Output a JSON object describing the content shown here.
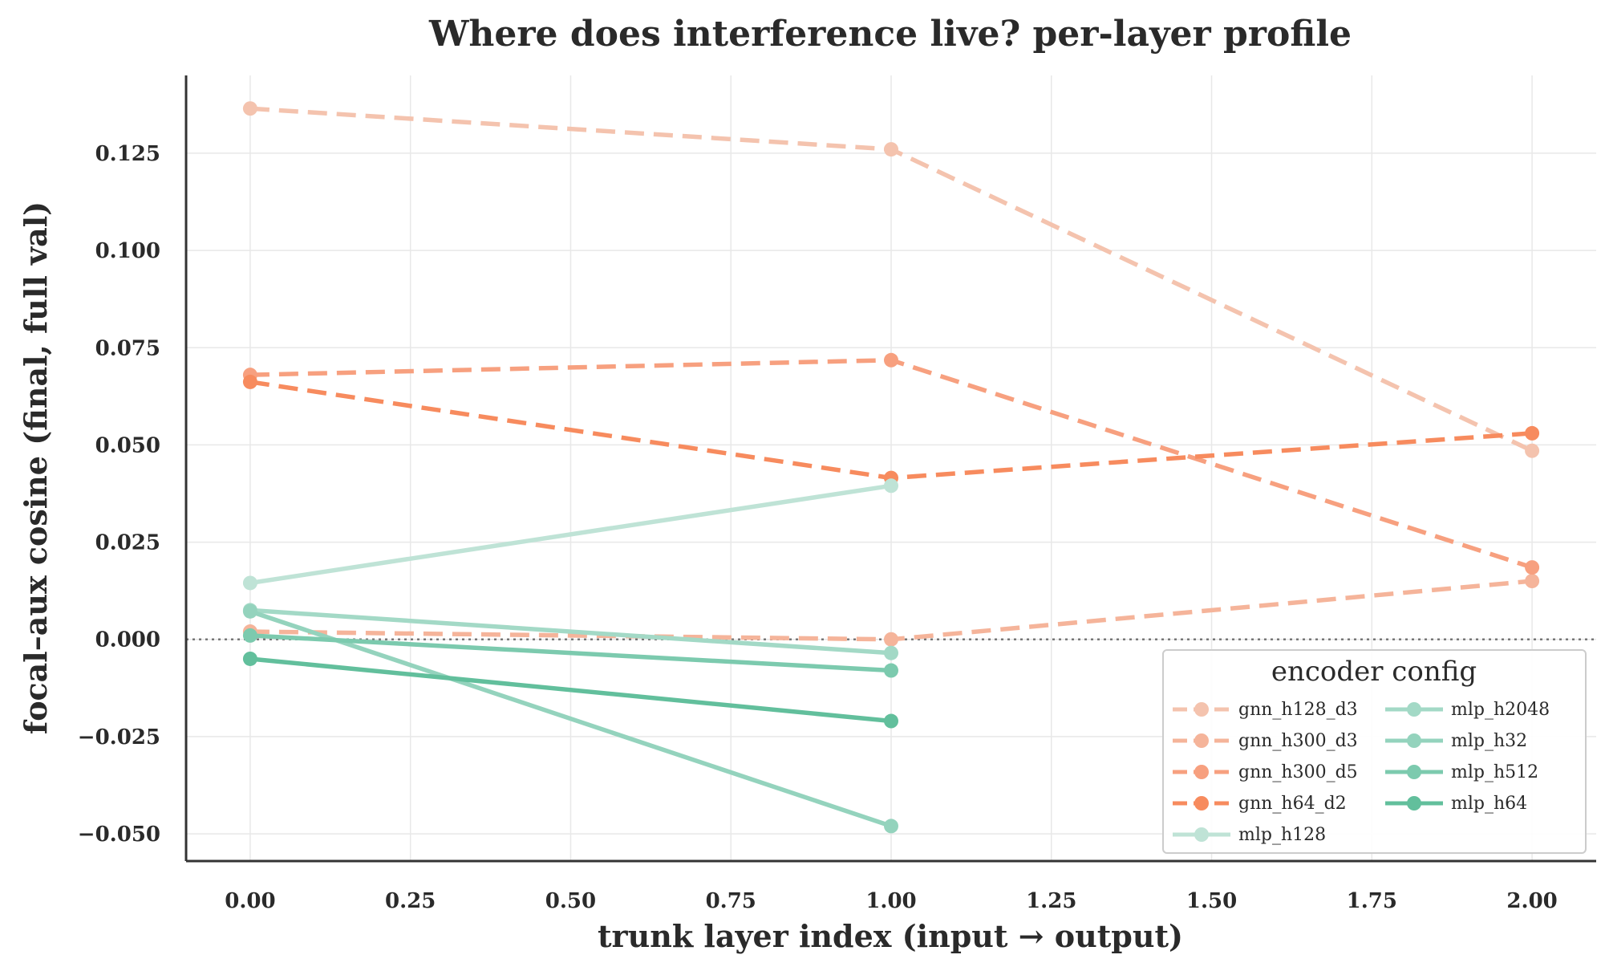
{
  "chart_data": {
    "type": "line",
    "title": "Where does interference live? per-layer profile",
    "xlabel": "trunk layer index  (input → output)",
    "ylabel": "focal–aux cosine  (final, full val)",
    "xlim": [
      -0.1,
      2.1
    ],
    "ylim": [
      -0.057,
      0.145
    ],
    "xticks": [
      0.0,
      0.25,
      0.5,
      0.75,
      1.0,
      1.25,
      1.5,
      1.75,
      2.0
    ],
    "xtick_labels": [
      "0.00",
      "0.25",
      "0.50",
      "0.75",
      "1.00",
      "1.25",
      "1.50",
      "1.75",
      "2.00"
    ],
    "yticks": [
      -0.05,
      -0.025,
      0.0,
      0.025,
      0.05,
      0.075,
      0.1,
      0.125
    ],
    "ytick_labels": [
      "−0.050",
      "−0.025",
      "0.000",
      "0.025",
      "0.050",
      "0.075",
      "0.100",
      "0.125"
    ],
    "grid": true,
    "reference_line_y": 0.0,
    "legend": {
      "title": "encoder config",
      "placement": "lower-right",
      "columns": 2
    },
    "series": [
      {
        "name": "gnn_h128_d3",
        "color": "#f4c3ae",
        "dashed": true,
        "x": [
          0,
          1,
          2
        ],
        "y": [
          0.1365,
          0.126,
          0.0485
        ]
      },
      {
        "name": "gnn_h300_d3",
        "color": "#f5b49a",
        "dashed": true,
        "x": [
          0,
          1,
          2
        ],
        "y": [
          0.002,
          0.0,
          0.015
        ]
      },
      {
        "name": "gnn_h300_d5",
        "color": "#f7a07f",
        "dashed": true,
        "x": [
          0,
          1,
          2
        ],
        "y": [
          0.068,
          0.0718,
          0.0185
        ]
      },
      {
        "name": "gnn_h64_d2",
        "color": "#f78b5e",
        "dashed": true,
        "x": [
          0,
          1,
          2
        ],
        "y": [
          0.0662,
          0.0415,
          0.053
        ]
      },
      {
        "name": "mlp_h128",
        "color": "#bfe3d6",
        "dashed": false,
        "x": [
          0,
          1
        ],
        "y": [
          0.0145,
          0.0395
        ]
      },
      {
        "name": "mlp_h2048",
        "color": "#a3d9c6",
        "dashed": false,
        "x": [
          0,
          1
        ],
        "y": [
          0.0075,
          -0.0035
        ]
      },
      {
        "name": "mlp_h32",
        "color": "#94d3bd",
        "dashed": false,
        "x": [
          0,
          1
        ],
        "y": [
          0.0072,
          -0.048
        ]
      },
      {
        "name": "mlp_h512",
        "color": "#7ccaae",
        "dashed": false,
        "x": [
          0,
          1
        ],
        "y": [
          0.001,
          -0.008
        ]
      },
      {
        "name": "mlp_h64",
        "color": "#62bf9c",
        "dashed": false,
        "x": [
          0,
          1
        ],
        "y": [
          -0.005,
          -0.021
        ]
      }
    ]
  }
}
